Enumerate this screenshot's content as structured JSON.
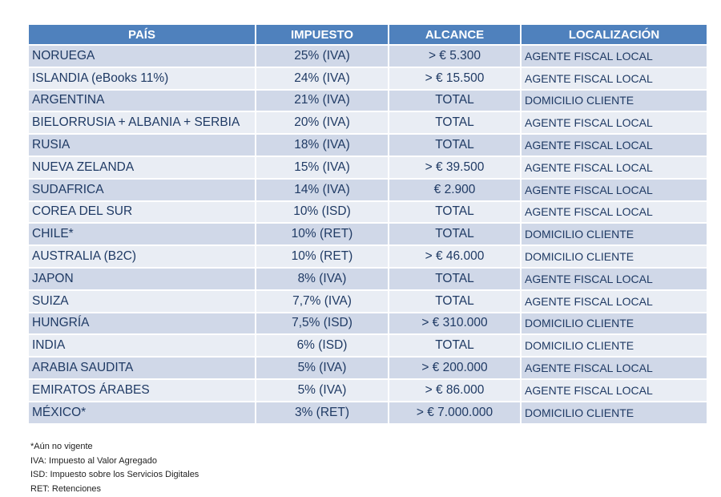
{
  "table": {
    "header": [
      "PAÍS",
      "IMPUESTO",
      "ALCANCE",
      "LOCALIZACIÓN"
    ],
    "rows": [
      [
        "NORUEGA",
        "25% (IVA)",
        "> € 5.300",
        "AGENTE FISCAL LOCAL"
      ],
      [
        "ISLANDIA (eBooks 11%)",
        "24% (IVA)",
        "> € 15.500",
        "AGENTE FISCAL LOCAL"
      ],
      [
        "ARGENTINA",
        "21% (IVA)",
        "TOTAL",
        "DOMICILIO CLIENTE"
      ],
      [
        "BIELORRUSIA + ALBANIA + SERBIA",
        "20% (IVA)",
        "TOTAL",
        "AGENTE FISCAL LOCAL"
      ],
      [
        "RUSIA",
        "18% (IVA)",
        "TOTAL",
        "AGENTE FISCAL LOCAL"
      ],
      [
        "NUEVA ZELANDA",
        "15% (IVA)",
        "> € 39.500",
        "AGENTE FISCAL LOCAL"
      ],
      [
        "SUDAFRICA",
        "14% (IVA)",
        "€ 2.900",
        "AGENTE FISCAL LOCAL"
      ],
      [
        "COREA DEL SUR",
        "10% (ISD)",
        "TOTAL",
        "AGENTE FISCAL LOCAL"
      ],
      [
        "CHILE*",
        "10% (RET)",
        "TOTAL",
        "DOMICILIO CLIENTE"
      ],
      [
        "AUSTRALIA (B2C)",
        "10% (RET)",
        "> € 46.000",
        "DOMICILIO CLIENTE"
      ],
      [
        "JAPON",
        "8% (IVA)",
        "TOTAL",
        "AGENTE FISCAL LOCAL"
      ],
      [
        "SUIZA",
        "7,7% (IVA)",
        "TOTAL",
        "AGENTE FISCAL LOCAL"
      ],
      [
        "HUNGRÍA",
        "7,5% (ISD)",
        "> € 310.000",
        "DOMICILIO CLIENTE"
      ],
      [
        "INDIA",
        "6% (ISD)",
        "TOTAL",
        "DOMICILIO CLIENTE"
      ],
      [
        "ARABIA SAUDITA",
        "5% (IVA)",
        "> € 200.000",
        "AGENTE FISCAL LOCAL"
      ],
      [
        "EMIRATOS ÁRABES",
        "5% (IVA)",
        "> € 86.000",
        "AGENTE FISCAL LOCAL"
      ],
      [
        "MÉXICO*",
        "3% (RET)",
        "> € 7.000.000",
        "DOMICILIO CLIENTE"
      ]
    ]
  },
  "notes": [
    "*Aún no vigente",
    "IVA: Impuesto al Valor Agregado",
    "ISD: Impuesto sobre los Servicios Digitales",
    "RET: Retenciones"
  ]
}
